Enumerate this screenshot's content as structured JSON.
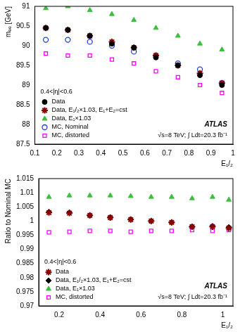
{
  "chart_data": [
    {
      "type": "scatter",
      "x_label": "E₁/₂",
      "y_label": "mₑₑ [GeV]",
      "x": [
        0.15,
        0.25,
        0.35,
        0.45,
        0.55,
        0.65,
        0.75,
        0.85,
        0.95
      ],
      "xlim": [
        0.1,
        1
      ],
      "xticks": [
        0.1,
        0.2,
        0.3,
        0.4,
        0.5,
        0.6,
        0.7,
        0.8,
        0.9,
        1
      ],
      "ylim": [
        87.5,
        91
      ],
      "yticks": [
        87.5,
        88,
        88.5,
        89,
        89.5,
        90,
        90.5,
        91
      ],
      "grid": false,
      "legend": "lower left",
      "annotations": [
        "0.4<|η|<0.6",
        "ATLAS",
        "√s=8 TeV; ∫ Ldt=20.3 fb⁻¹"
      ],
      "series": [
        {
          "name": "Data",
          "color": "#000000",
          "marker": "circle",
          "values": [
            90.45,
            90.4,
            90.25,
            90.05,
            89.95,
            89.7,
            89.5,
            89.25,
            89.0
          ]
        },
        {
          "name": "Data, E₁/₂×1.03, E₁+E₂=cst",
          "color": "#8b0000",
          "marker": "star",
          "values": [
            90.45,
            90.4,
            90.25,
            90.1,
            89.95,
            89.75,
            89.5,
            89.3,
            89.05
          ]
        },
        {
          "name": "Data, E₁×1.03",
          "color": "#3dbf3d",
          "marker": "triangle",
          "values": [
            90.95,
            91.0,
            90.9,
            90.8,
            90.65,
            90.45,
            90.25,
            90.05,
            89.9
          ]
        },
        {
          "name": "MC, Nominal",
          "color": "#1f3fd6",
          "marker": "circle_open",
          "values": [
            90.15,
            90.15,
            90.1,
            90.0,
            89.85,
            89.75,
            89.55,
            89.4,
            89.05
          ]
        },
        {
          "name": "MC, distorted",
          "color": "#ff00ff",
          "marker": "square_open",
          "values": [
            89.8,
            89.75,
            89.75,
            89.65,
            89.55,
            89.35,
            89.2,
            89.0,
            88.8
          ]
        }
      ]
    },
    {
      "type": "scatter",
      "x_label": "E₁/₂",
      "y_label": "Ratio to Nominal MC",
      "x": [
        0.15,
        0.25,
        0.35,
        0.45,
        0.55,
        0.65,
        0.75,
        0.85,
        0.95,
        1.03
      ],
      "xlim": [
        0.1,
        1.05
      ],
      "xticks": [
        0.2,
        0.4,
        0.6,
        0.8,
        1
      ],
      "ylim": [
        0.97,
        1.015
      ],
      "yticks": [
        0.97,
        0.975,
        0.98,
        0.985,
        0.99,
        0.995,
        1,
        1.005,
        1.01,
        1.015
      ],
      "grid": false,
      "legend": "lower left",
      "annotations": [
        "0.4<|η|<0.6",
        "ATLAS",
        "√s=8 TeV; ∫ Ldt=20.3 fb⁻¹"
      ],
      "series": [
        {
          "name": "Data",
          "color": "#8b0000",
          "marker": "star",
          "values": [
            1.003,
            1.0028,
            1.002,
            1.0012,
            1.0005,
            1.0,
            0.9995,
            0.998,
            0.998,
            0.9975
          ]
        },
        {
          "name": "Data, E₁/₂×1.03, E₁+E₂=cst",
          "color": "#000000",
          "marker": "diamond",
          "values": [
            1.0032,
            1.003,
            1.002,
            1.0013,
            1.0006,
            1.0,
            0.9995,
            0.998,
            0.9982,
            0.9978
          ]
        },
        {
          "name": "Data, E₁×1.03",
          "color": "#3dbf3d",
          "marker": "triangle",
          "values": [
            1.0085,
            1.009,
            1.009,
            1.009,
            1.0088,
            1.0085,
            1.0085,
            1.008,
            1.0085,
            1.0075
          ]
        },
        {
          "name": "MC, distorted",
          "color": "#ff00ff",
          "marker": "square_open",
          "values": [
            0.996,
            0.9962,
            0.9965,
            0.9965,
            0.9962,
            0.9965,
            0.9965,
            0.9968,
            0.9965,
            0.9968
          ]
        }
      ]
    }
  ]
}
